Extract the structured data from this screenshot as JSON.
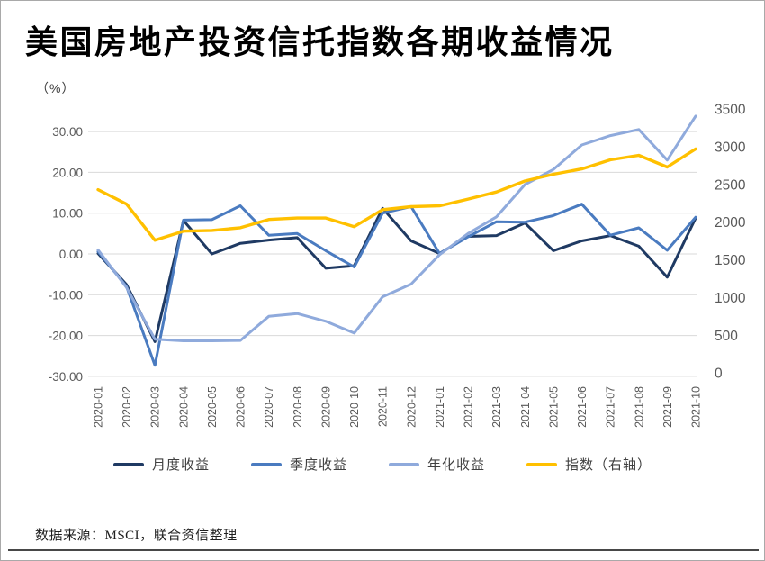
{
  "title": "美国房地产投资信托指数各期收益情况",
  "unit_label": "（%）",
  "footer": {
    "source": "数据来源：MSCI，联合资信整理"
  },
  "colors": {
    "monthly": "#1f3a63",
    "quarterly": "#4a7bc0",
    "annualized": "#8faadc",
    "index": "#ffc000",
    "grid": "#d9d9d9",
    "axis_text": "#595959",
    "legend_text": "#404040"
  },
  "chart_data": {
    "type": "line",
    "title": "美国房地产投资信托指数各期收益情况",
    "grid": true,
    "legend_position": "bottom",
    "categories": [
      "2020-01",
      "2020-02",
      "2020-03",
      "2020-04",
      "2020-05",
      "2020-06",
      "2020-07",
      "2020-08",
      "2020-09",
      "2020-10",
      "2020-11",
      "2020-12",
      "2021-01",
      "2021-02",
      "2021-03",
      "2021-04",
      "2021-05",
      "2021-06",
      "2021-07",
      "2021-08",
      "2021-09",
      "2021-10"
    ],
    "left_axis": {
      "unit": "%",
      "min": -30,
      "max": 30,
      "ticks": [
        "30.00",
        "20.00",
        "10.00",
        "0.00",
        "-10.00",
        "-20.00",
        "-30.00"
      ]
    },
    "right_axis": {
      "min": 0,
      "max": 3500,
      "ticks": [
        "3500",
        "3000",
        "2500",
        "2000",
        "1500",
        "1000",
        "500",
        "0"
      ]
    },
    "series": [
      {
        "key": "monthly",
        "name": "月度收益",
        "axis": "left",
        "color": "#1f3a63",
        "width": 3,
        "values": [
          0.1,
          -7.5,
          -21.5,
          8.2,
          0.0,
          2.6,
          3.4,
          4.0,
          -3.5,
          -2.9,
          11.2,
          3.2,
          0.1,
          4.3,
          4.5,
          7.6,
          0.8,
          3.2,
          4.5,
          1.9,
          -5.7,
          8.8
        ]
      },
      {
        "key": "quarterly",
        "name": "季度收益",
        "axis": "left",
        "color": "#4a7bc0",
        "width": 3,
        "values": [
          0.6,
          -8.0,
          -27.3,
          8.3,
          8.4,
          11.8,
          4.6,
          5.0,
          0.8,
          -3.2,
          10.0,
          11.6,
          0.1,
          4.2,
          7.9,
          7.8,
          9.4,
          12.2,
          4.6,
          6.4,
          0.9,
          9.0
        ]
      },
      {
        "key": "annualized",
        "name": "年化收益",
        "axis": "left",
        "color": "#8faadc",
        "width": 3,
        "values": [
          1.0,
          -8.2,
          -20.9,
          -21.3,
          -21.3,
          -21.2,
          -15.3,
          -14.6,
          -16.5,
          -19.4,
          -10.5,
          -7.4,
          -0.2,
          5.0,
          9.1,
          17.0,
          20.7,
          26.7,
          29.0,
          30.5,
          23.0,
          33.8
        ]
      },
      {
        "key": "index",
        "name": "指数（右轴）",
        "axis": "right",
        "color": "#ffc000",
        "width": 3.4,
        "values": [
          2430,
          2240,
          1760,
          1880,
          1890,
          1925,
          2035,
          2055,
          2055,
          1940,
          2165,
          2205,
          2215,
          2305,
          2400,
          2545,
          2635,
          2705,
          2825,
          2885,
          2730,
          2970
        ]
      }
    ]
  }
}
